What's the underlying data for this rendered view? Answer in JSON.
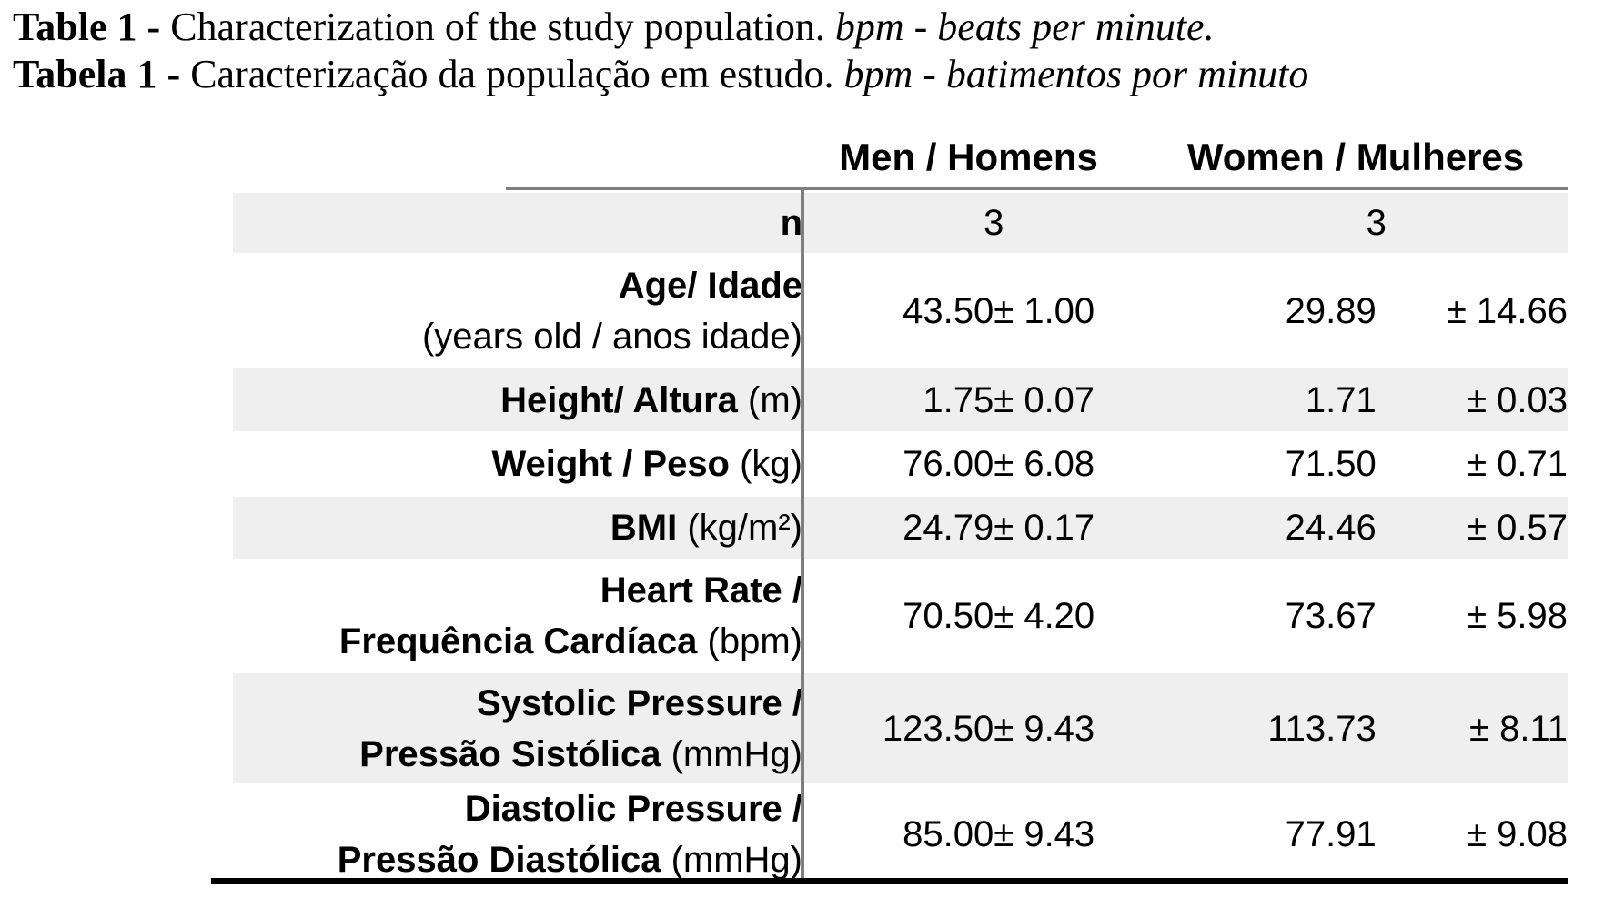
{
  "caption": {
    "line1": {
      "prefix": "Table 1 - ",
      "body": "Characterization of the study population. ",
      "note": "bpm - beats per minute."
    },
    "line2": {
      "prefix": "Tabela 1 - ",
      "body": "Caracterização da população em estudo. ",
      "note": "bpm - batimentos por minuto"
    }
  },
  "table": {
    "column_headers": {
      "men": "Men / Homens",
      "women": "Women / Mulheres"
    },
    "rows": [
      {
        "id": "n",
        "shaded": true,
        "label_lines": [
          [
            {
              "text": "n",
              "bold": true
            }
          ]
        ],
        "men_value": "3",
        "men_sd": "",
        "women_value": "3",
        "women_sd": "",
        "merged": true
      },
      {
        "id": "age",
        "shaded": false,
        "label_lines": [
          [
            {
              "text": "Age/ Idade",
              "bold": true
            }
          ],
          [
            {
              "text": "(years old / anos idade)",
              "bold": false
            }
          ]
        ],
        "men_value": "43.50",
        "men_sd": "± 1.00",
        "women_value": "29.89",
        "women_sd": "± 14.66",
        "merged": false
      },
      {
        "id": "height",
        "shaded": true,
        "label_lines": [
          [
            {
              "text": "Height/ Altura",
              "bold": true
            },
            {
              "text": " (m)",
              "bold": false
            }
          ]
        ],
        "men_value": "1.75",
        "men_sd": "± 0.07",
        "women_value": "1.71",
        "women_sd": "± 0.03",
        "merged": false
      },
      {
        "id": "weight",
        "shaded": false,
        "label_lines": [
          [
            {
              "text": "Weight / Peso",
              "bold": true
            },
            {
              "text": " (kg)",
              "bold": false
            }
          ]
        ],
        "men_value": "76.00",
        "men_sd": "± 6.08",
        "women_value": "71.50",
        "women_sd": "± 0.71",
        "merged": false
      },
      {
        "id": "bmi",
        "shaded": true,
        "label_lines": [
          [
            {
              "text": "BMI",
              "bold": true
            },
            {
              "text": " (kg/m²)",
              "bold": false
            }
          ]
        ],
        "men_value": "24.79",
        "men_sd": "± 0.17",
        "women_value": "24.46",
        "women_sd": "± 0.57",
        "merged": false
      },
      {
        "id": "heart-rate",
        "shaded": false,
        "label_lines": [
          [
            {
              "text": "Heart Rate /",
              "bold": true
            }
          ],
          [
            {
              "text": "Frequência Cardíaca",
              "bold": true
            },
            {
              "text": " (bpm)",
              "bold": false
            }
          ]
        ],
        "men_value": "70.50",
        "men_sd": "± 4.20",
        "women_value": "73.67",
        "women_sd": "± 5.98",
        "merged": false
      },
      {
        "id": "systolic",
        "shaded": true,
        "label_lines": [
          [
            {
              "text": "Systolic Pressure /",
              "bold": true
            }
          ],
          [
            {
              "text": "Pressão Sistólica",
              "bold": true
            },
            {
              "text": " (mmHg)",
              "bold": false
            }
          ]
        ],
        "men_value": "123.50",
        "men_sd": "± 9.43",
        "women_value": "113.73",
        "women_sd": "± 8.11",
        "merged": false
      },
      {
        "id": "diastolic",
        "shaded": false,
        "label_lines": [
          [
            {
              "text": "Diastolic Pressure /",
              "bold": true
            }
          ],
          [
            {
              "text": "Pressão Diastólica",
              "bold": true
            },
            {
              "text": " (mmHg)",
              "bold": false
            }
          ]
        ],
        "men_value": "85.00",
        "men_sd": "± 9.43",
        "women_value": "77.91",
        "women_sd": "± 9.08",
        "merged": false
      }
    ],
    "colors": {
      "stripe": "#efefef",
      "rule_gray": "#7f7f7f",
      "rule_black": "#000000",
      "text": "#000000"
    }
  }
}
